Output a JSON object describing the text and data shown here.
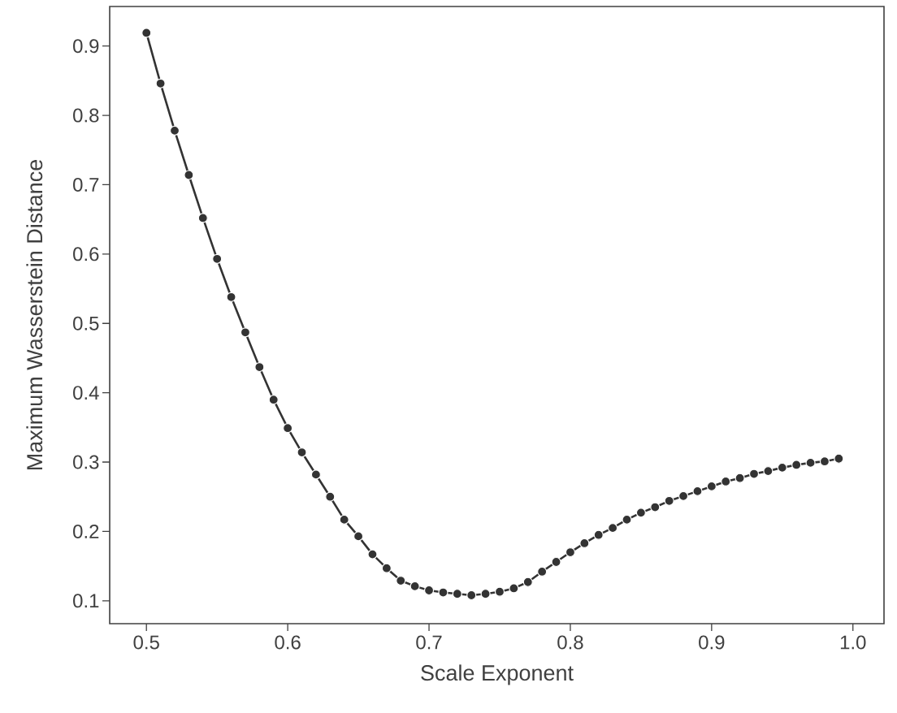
{
  "chart_data": {
    "type": "line",
    "xlabel": "Scale Exponent",
    "ylabel": "Maximum Wasserstein Distance",
    "x": [
      0.5,
      0.51,
      0.52,
      0.53,
      0.54,
      0.55,
      0.56,
      0.57,
      0.58,
      0.59,
      0.6,
      0.61,
      0.62,
      0.63,
      0.64,
      0.65,
      0.66,
      0.67,
      0.68,
      0.69,
      0.7,
      0.71,
      0.72,
      0.73,
      0.74,
      0.75,
      0.76,
      0.77,
      0.78,
      0.79,
      0.8,
      0.81,
      0.82,
      0.83,
      0.84,
      0.85,
      0.86,
      0.87,
      0.88,
      0.89,
      0.9,
      0.91,
      0.92,
      0.93,
      0.94,
      0.95,
      0.96,
      0.97,
      0.98,
      0.99
    ],
    "series": [
      {
        "color": "#333333",
        "values": [
          0.919,
          0.846,
          0.778,
          0.714,
          0.652,
          0.593,
          0.538,
          0.487,
          0.437,
          0.39,
          0.349,
          0.314,
          0.282,
          0.25,
          0.217,
          0.193,
          0.167,
          0.147,
          0.129,
          0.121,
          0.115,
          0.112,
          0.11,
          0.108,
          0.11,
          0.113,
          0.118,
          0.127,
          0.142,
          0.156,
          0.17,
          0.183,
          0.195,
          0.205,
          0.217,
          0.227,
          0.235,
          0.244,
          0.251,
          0.258,
          0.265,
          0.272,
          0.277,
          0.283,
          0.287,
          0.292,
          0.296,
          0.299,
          0.301,
          0.305
        ]
      }
    ],
    "xlim": [
      0.474,
      1.022
    ],
    "ylim": [
      0.067,
      0.957
    ],
    "xticks": [
      0.5,
      0.6,
      0.7,
      0.8,
      0.9,
      {
        "value": 1.0,
        "label": "1.0"
      }
    ],
    "yticks": [
      0.1,
      0.2,
      0.3,
      0.4,
      0.5,
      0.6,
      0.7,
      0.8,
      0.9
    ],
    "marker": "circle",
    "line_style": "solid"
  }
}
